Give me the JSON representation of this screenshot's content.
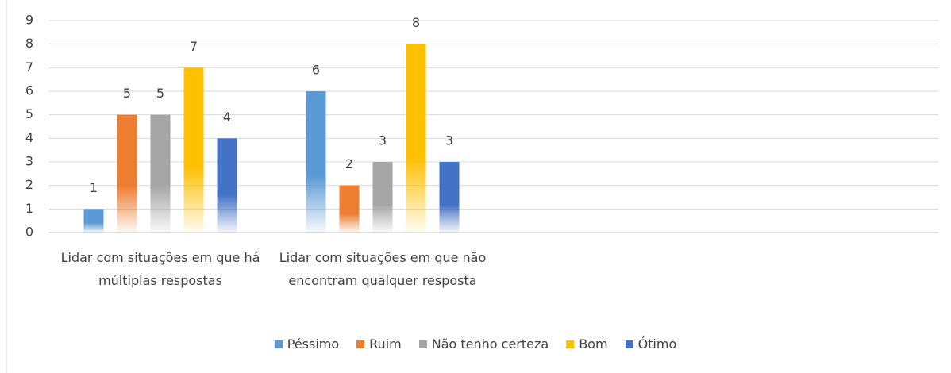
{
  "chart_data": {
    "type": "bar",
    "categories": [
      "Lidar com situações em que há múltiplas respostas",
      "Lidar com situações em que não encontram qualquer resposta",
      null,
      null
    ],
    "series": [
      {
        "name": "Péssimo",
        "color": "#5b9bd5",
        "values": [
          1,
          6,
          null,
          null
        ]
      },
      {
        "name": "Ruim",
        "color": "#ed7d31",
        "values": [
          5,
          2,
          null,
          null
        ]
      },
      {
        "name": "Não tenho certeza",
        "color": "#a5a5a5",
        "values": [
          5,
          3,
          null,
          null
        ]
      },
      {
        "name": "Bom",
        "color": "#ffc000",
        "values": [
          7,
          8,
          null,
          null
        ]
      },
      {
        "name": "Ótimo",
        "color": "#4472c4",
        "values": [
          4,
          3,
          null,
          null
        ]
      }
    ],
    "ylim": [
      0,
      9
    ],
    "yticks": [
      0,
      1,
      2,
      3,
      4,
      5,
      6,
      7,
      8,
      9
    ],
    "grid": true,
    "legend": "bottom"
  }
}
